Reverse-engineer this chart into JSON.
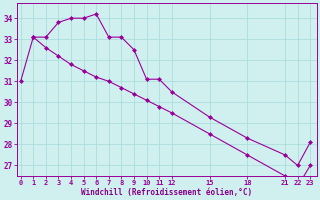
{
  "line1_x": [
    0,
    1,
    2,
    3,
    4,
    5,
    6,
    7,
    8,
    9,
    10,
    11,
    12,
    15,
    18,
    21,
    22,
    23
  ],
  "line1_y": [
    31.0,
    33.1,
    33.1,
    33.8,
    34.0,
    34.0,
    34.2,
    33.1,
    33.1,
    32.5,
    31.1,
    31.1,
    30.5,
    29.3,
    28.3,
    27.5,
    27.0,
    28.1
  ],
  "line2_x": [
    1,
    2,
    3,
    4,
    5,
    6,
    7,
    8,
    9,
    10,
    11,
    12,
    15,
    18,
    21,
    22,
    23
  ],
  "line2_y": [
    33.1,
    32.6,
    32.2,
    31.8,
    31.5,
    31.2,
    31.0,
    30.7,
    30.4,
    30.1,
    29.8,
    29.5,
    28.5,
    27.5,
    26.5,
    26.0,
    27.0
  ],
  "line_color": "#990099",
  "bg_color": "#d0f0f0",
  "grid_color": "#aadddd",
  "axis_color": "#990099",
  "tick_label_color": "#880088",
  "xlabel": "Windchill (Refroidissement éolien,°C)",
  "xlim": [
    -0.3,
    23.5
  ],
  "ylim": [
    26.5,
    34.7
  ],
  "yticks": [
    27,
    28,
    29,
    30,
    31,
    32,
    33,
    34
  ],
  "xticks": [
    0,
    1,
    2,
    3,
    4,
    5,
    6,
    7,
    8,
    9,
    10,
    11,
    12,
    15,
    18,
    21,
    22,
    23
  ],
  "xtick_labels": [
    "0",
    "1",
    "2",
    "3",
    "4",
    "5",
    "6",
    "7",
    "8",
    "9",
    "10",
    "11",
    "12",
    "15",
    "18",
    "21",
    "22",
    "23"
  ],
  "marker": "D",
  "marker_size": 2.0,
  "line_width": 0.8
}
